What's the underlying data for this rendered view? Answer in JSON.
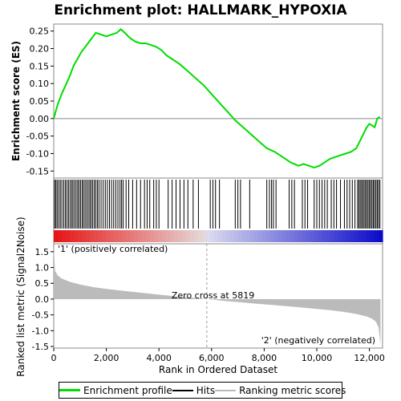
{
  "chart_data": {
    "type": "line",
    "title": "Enrichment plot: HALLMARK_HYPOXIA",
    "es_panel": {
      "ylabel": "Enrichment score (ES)",
      "ylim": [
        -0.17,
        0.27
      ],
      "yticks": [
        0.25,
        0.2,
        0.15,
        0.1,
        0.05,
        0.0,
        -0.05,
        -0.1,
        -0.15
      ],
      "ytick_labels": [
        "0.25",
        "0.20",
        "0.15",
        "0.10",
        "0.05",
        "0.00",
        "-0.05",
        "-0.10",
        "-0.15"
      ],
      "series": [
        {
          "color": "#00dd00",
          "x": [
            0,
            150,
            300,
            450,
            600,
            750,
            900,
            1050,
            1200,
            1400,
            1600,
            1800,
            2000,
            2200,
            2400,
            2550,
            2700,
            2900,
            3100,
            3300,
            3500,
            3700,
            3900,
            4100,
            4300,
            4500,
            4800,
            5100,
            5400,
            5700,
            6000,
            6300,
            6600,
            6900,
            7200,
            7500,
            7800,
            8100,
            8400,
            8700,
            9000,
            9300,
            9500,
            9700,
            9900,
            10100,
            10300,
            10500,
            10700,
            10900,
            11100,
            11300,
            11500,
            11600,
            11700,
            11800,
            11900,
            12000,
            12100,
            12200,
            12300,
            12400
          ],
          "y": [
            0.0,
            0.04,
            0.07,
            0.095,
            0.12,
            0.15,
            0.17,
            0.19,
            0.205,
            0.225,
            0.245,
            0.24,
            0.235,
            0.24,
            0.245,
            0.255,
            0.245,
            0.23,
            0.22,
            0.215,
            0.215,
            0.21,
            0.205,
            0.195,
            0.18,
            0.17,
            0.155,
            0.135,
            0.115,
            0.095,
            0.07,
            0.045,
            0.02,
            -0.005,
            -0.025,
            -0.045,
            -0.065,
            -0.085,
            -0.095,
            -0.11,
            -0.125,
            -0.135,
            -0.13,
            -0.135,
            -0.14,
            -0.135,
            -0.125,
            -0.115,
            -0.11,
            -0.105,
            -0.1,
            -0.095,
            -0.085,
            -0.07,
            -0.055,
            -0.04,
            -0.025,
            -0.015,
            -0.02,
            -0.025,
            0.0,
            0.005
          ]
        }
      ]
    },
    "metric_panel": {
      "ylabel": "Ranked list metric (Signal2Noise)",
      "ylim": [
        -1.55,
        1.75
      ],
      "yticks": [
        1.5,
        1.0,
        0.5,
        0.0,
        -0.5,
        -1.0,
        -1.5
      ],
      "ytick_labels": [
        "1.5",
        "1.0",
        "0.5",
        "0.0",
        "-0.5",
        "-1.0",
        "-1.5"
      ],
      "metric_x": [
        0,
        50,
        150,
        300,
        600,
        1000,
        1500,
        2000,
        3000,
        4000,
        5000,
        5819,
        6500,
        7500,
        8500,
        9500,
        10500,
        11000,
        11500,
        11900,
        12100,
        12250,
        12350,
        12420
      ],
      "metric_y": [
        1.65,
        0.9,
        0.75,
        0.65,
        0.55,
        0.46,
        0.38,
        0.32,
        0.23,
        0.14,
        0.06,
        0.0,
        -0.06,
        -0.13,
        -0.2,
        -0.27,
        -0.35,
        -0.4,
        -0.47,
        -0.55,
        -0.62,
        -0.72,
        -0.9,
        -1.45
      ],
      "zero_cross_label": "Zero cross at 5819",
      "zero_cross_x": 5819,
      "pos_label": "'1' (positively correlated)",
      "neg_label": "'2' (negatively correlated)",
      "pos_color": "#ff0000",
      "neg_color": "#0000ff"
    },
    "hits": [
      30,
      80,
      130,
      190,
      250,
      310,
      380,
      440,
      500,
      560,
      620,
      680,
      730,
      790,
      850,
      910,
      960,
      1020,
      1080,
      1130,
      1190,
      1250,
      1310,
      1370,
      1420,
      1480,
      1540,
      1600,
      1660,
      1720,
      1800,
      1880,
      1960,
      2040,
      2120,
      2200,
      2280,
      2360,
      2440,
      2520,
      2580,
      2640,
      2750,
      2850,
      3000,
      3150,
      3300,
      3450,
      3550,
      3650,
      3800,
      3900,
      4000,
      4350,
      4500,
      4650,
      4800,
      4950,
      5100,
      5300,
      5500,
      5950,
      6050,
      6150,
      6300,
      6900,
      7000,
      7100,
      7450,
      8100,
      8200,
      8280,
      8350,
      8450,
      8950,
      9050,
      9150,
      9450,
      9550,
      9650,
      9900,
      10000,
      10100,
      10200,
      10300,
      10400,
      10550,
      10650,
      10750,
      10900,
      11050,
      11150,
      11250,
      11350,
      11450,
      11550,
      11600,
      11650,
      11700,
      11750,
      11800,
      11850,
      11900,
      11950,
      12000,
      12050,
      12100,
      12150,
      12200,
      12250,
      12300,
      12350,
      12400
    ],
    "xaxis": {
      "xlabel": "Rank in Ordered Dataset",
      "xlim": [
        0,
        12500
      ],
      "xticks": [
        0,
        2000,
        4000,
        6000,
        8000,
        10000,
        12000
      ],
      "xtick_labels": [
        "0",
        "2,000",
        "4,000",
        "6,000",
        "8,000",
        "10,000",
        "12,000"
      ]
    },
    "legend": {
      "placement": "bottom",
      "items": [
        {
          "label": "Enrichment profile",
          "color": "#00dd00"
        },
        {
          "label": "Hits",
          "color": "#000000"
        },
        {
          "label": "Ranking metric scores",
          "color": "#bbbbbb"
        }
      ]
    }
  }
}
